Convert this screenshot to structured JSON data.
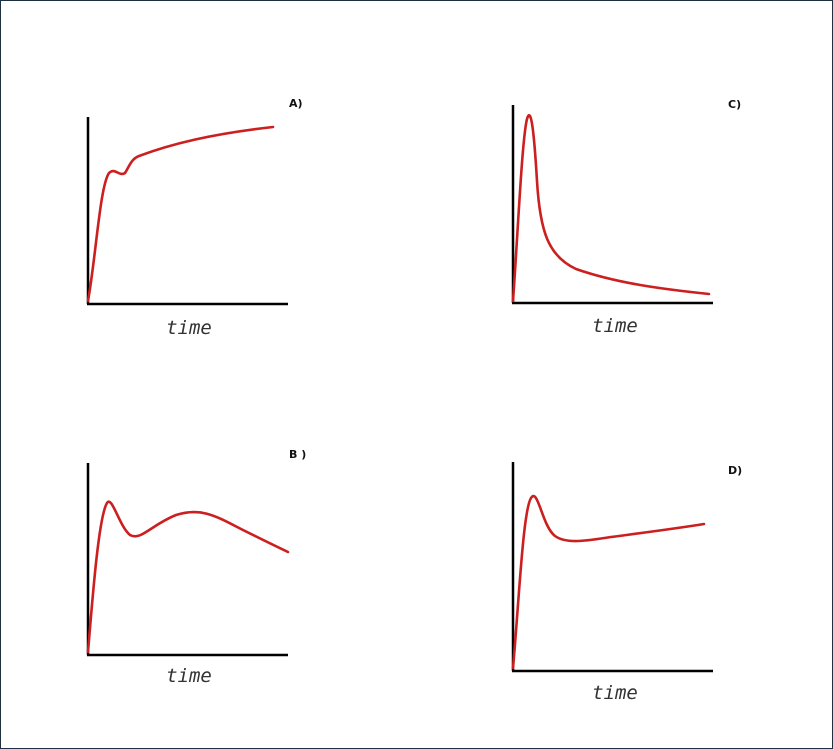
{
  "colors": {
    "curve": "#cc1f1f",
    "axis": "#000000",
    "frame_border": "#1f3040"
  },
  "panels": [
    {
      "id": "A",
      "letter": "A)",
      "xlabel": "time"
    },
    {
      "id": "B",
      "letter": "B )",
      "xlabel": "time"
    },
    {
      "id": "C",
      "letter": "C)",
      "xlabel": "time"
    },
    {
      "id": "D",
      "letter": "D)",
      "xlabel": "time"
    }
  ]
}
